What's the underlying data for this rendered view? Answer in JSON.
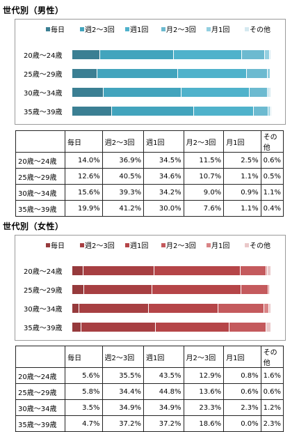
{
  "male": {
    "title": "世代別（男性）",
    "colors": [
      "#3b7f93",
      "#42a4bd",
      "#4fb2cb",
      "#6cbad0",
      "#93cfe0",
      "#d5e9f0"
    ],
    "table": {
      "headers": [
        "",
        "毎日",
        "週2～3回",
        "週1回",
        "月2～3回",
        "月1回",
        "その他"
      ],
      "rows": [
        {
          "label": "20歳～24歳",
          "cells": [
            "14.0%",
            "36.9%",
            "34.5%",
            "11.5%",
            "2.5%",
            "0.6%"
          ]
        },
        {
          "label": "25歳～29歳",
          "cells": [
            "12.6%",
            "40.5%",
            "34.6%",
            "10.7%",
            "1.1%",
            "0.5%"
          ]
        },
        {
          "label": "30歳～34歳",
          "cells": [
            "15.6%",
            "39.3%",
            "34.2%",
            "9.0%",
            "0.9%",
            "1.1%"
          ]
        },
        {
          "label": "35歳～39歳",
          "cells": [
            "19.9%",
            "41.2%",
            "30.0%",
            "7.6%",
            "1.1%",
            "0.4%"
          ]
        }
      ]
    }
  },
  "female": {
    "title": "世代別（女性）",
    "colors": [
      "#963a3c",
      "#a73f42",
      "#b54548",
      "#c45a5d",
      "#d98486",
      "#eac8c9"
    ],
    "table": {
      "headers": [
        "",
        "毎日",
        "週2～3回",
        "週1回",
        "月2～3回",
        "月1回",
        "その他"
      ],
      "rows": [
        {
          "label": "20歳～24歳",
          "cells": [
            "5.6%",
            "35.5%",
            "43.5%",
            "12.9%",
            "0.8%",
            "1.6%"
          ]
        },
        {
          "label": "25歳～29歳",
          "cells": [
            "5.8%",
            "34.4%",
            "44.8%",
            "13.6%",
            "0.6%",
            "0.6%"
          ]
        },
        {
          "label": "30歳～34歳",
          "cells": [
            "3.5%",
            "34.9%",
            "34.9%",
            "23.3%",
            "2.3%",
            "1.2%"
          ]
        },
        {
          "label": "35歳～39歳",
          "cells": [
            "4.7%",
            "37.2%",
            "37.2%",
            "18.6%",
            "0.0%",
            "2.3%"
          ]
        }
      ]
    }
  },
  "chart_data": [
    {
      "type": "bar",
      "stacked": true,
      "orientation": "horizontal",
      "percent_total": 100,
      "title": "世代別（男性）",
      "categories": [
        "20歳～24歳",
        "25歳～29歳",
        "30歳～34歳",
        "35歳～39歳"
      ],
      "legend_position": "top",
      "series": [
        {
          "name": "毎日",
          "values": [
            14.0,
            12.6,
            15.6,
            19.9
          ]
        },
        {
          "name": "週2～3回",
          "values": [
            36.9,
            40.5,
            39.3,
            41.2
          ]
        },
        {
          "name": "週1回",
          "values": [
            34.5,
            34.6,
            34.2,
            30.0
          ]
        },
        {
          "name": "月2～3回",
          "values": [
            11.5,
            10.7,
            9.0,
            7.6
          ]
        },
        {
          "name": "月1回",
          "values": [
            2.5,
            1.1,
            0.9,
            1.1
          ]
        },
        {
          "name": "その他",
          "values": [
            0.6,
            0.5,
            1.1,
            0.4
          ]
        }
      ]
    },
    {
      "type": "bar",
      "stacked": true,
      "orientation": "horizontal",
      "percent_total": 100,
      "title": "世代別（女性）",
      "categories": [
        "20歳～24歳",
        "25歳～29歳",
        "30歳～34歳",
        "35歳～39歳"
      ],
      "legend_position": "top",
      "series": [
        {
          "name": "毎日",
          "values": [
            5.6,
            5.8,
            3.5,
            4.7
          ]
        },
        {
          "name": "週2～3回",
          "values": [
            35.5,
            34.4,
            34.9,
            37.2
          ]
        },
        {
          "name": "週1回",
          "values": [
            43.5,
            44.8,
            34.9,
            37.2
          ]
        },
        {
          "name": "月2～3回",
          "values": [
            12.9,
            13.6,
            23.3,
            18.6
          ]
        },
        {
          "name": "月1回",
          "values": [
            0.8,
            0.6,
            2.3,
            0.0
          ]
        },
        {
          "name": "その他",
          "values": [
            1.6,
            0.6,
            1.2,
            2.3
          ]
        }
      ]
    }
  ]
}
